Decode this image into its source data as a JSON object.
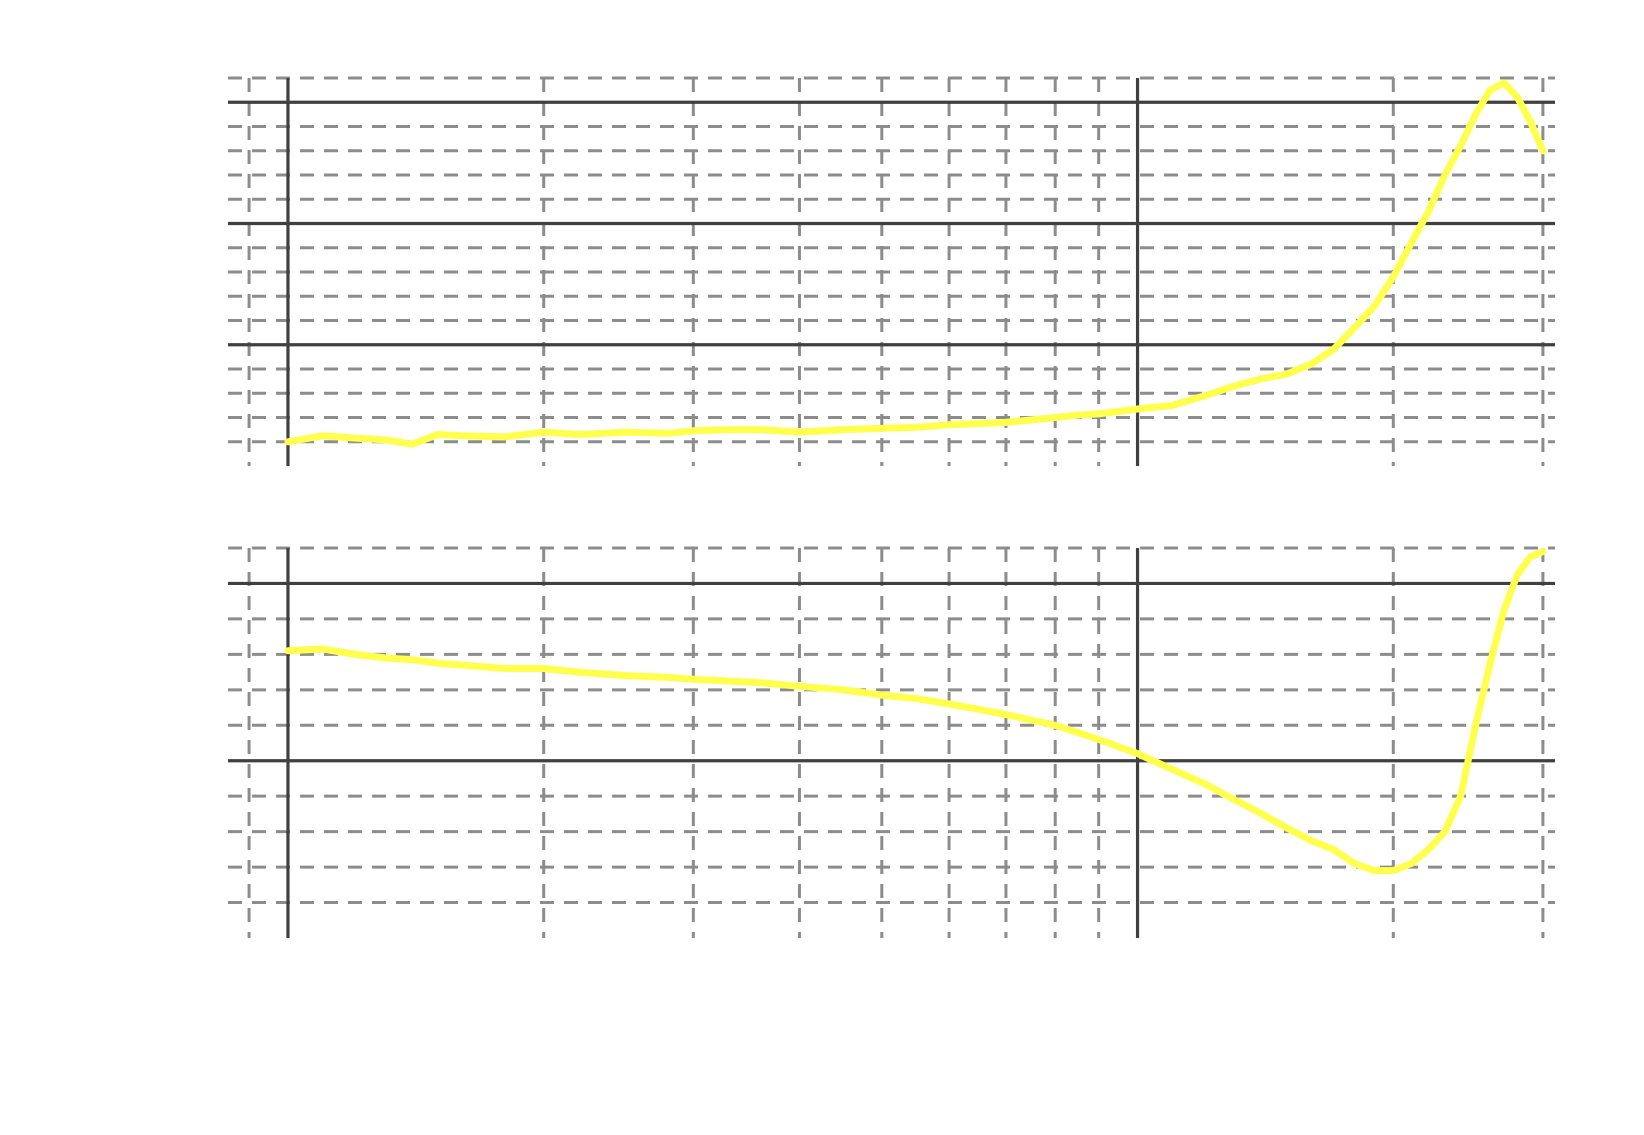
{
  "chart_data": [
    {
      "type": "line",
      "title": "",
      "xlabel": "",
      "ylabel": "",
      "x_scale": "log",
      "xlim": [
        0.85,
        31
      ],
      "x_major_ticks": [
        1,
        10
      ],
      "x_minor_ticks": [
        0.8,
        0.9,
        2,
        3,
        4,
        5,
        6,
        7,
        8,
        9,
        20,
        30
      ],
      "ylim": [
        0,
        1.6
      ],
      "y_major_ticks": [
        0.5,
        1.0,
        1.5
      ],
      "y_minor_ticks": [
        0.1,
        0.2,
        0.3,
        0.4,
        0.6,
        0.7,
        0.8,
        0.9,
        1.1,
        1.2,
        1.3,
        1.4,
        1.6
      ],
      "grid": true,
      "legend": "none",
      "series_color": "#ffff4d",
      "series": [
        {
          "x": [
            1.0,
            1.1,
            1.2,
            1.3,
            1.4,
            1.5,
            1.6,
            1.8,
            2.0,
            2.2,
            2.5,
            2.8,
            3.0,
            3.3,
            3.6,
            4.0,
            4.5,
            5.0,
            5.5,
            6.0,
            6.5,
            7.0,
            7.5,
            8.0,
            8.5,
            9.0,
            10.0,
            11.0,
            12.0,
            13.0,
            14.0,
            15.0,
            16.0,
            17.0,
            18.0,
            19.0,
            20.0,
            21.0,
            22.0,
            23.0,
            24.0,
            25.0,
            26.0,
            27.0,
            28.0,
            29.0,
            30.0
          ],
          "y": [
            0.1,
            0.125,
            0.115,
            0.108,
            0.09,
            0.13,
            0.125,
            0.12,
            0.14,
            0.13,
            0.14,
            0.135,
            0.145,
            0.15,
            0.15,
            0.14,
            0.15,
            0.155,
            0.16,
            0.17,
            0.175,
            0.18,
            0.19,
            0.2,
            0.21,
            0.215,
            0.235,
            0.25,
            0.29,
            0.33,
            0.36,
            0.38,
            0.42,
            0.48,
            0.57,
            0.66,
            0.78,
            0.92,
            1.05,
            1.2,
            1.32,
            1.45,
            1.55,
            1.58,
            1.52,
            1.42,
            1.3
          ],
          "name": ""
        }
      ]
    },
    {
      "type": "line",
      "title": "",
      "xlabel": "",
      "ylabel": "",
      "x_scale": "log",
      "xlim": [
        0.85,
        31
      ],
      "x_major_ticks": [
        1,
        10
      ],
      "x_minor_ticks": [
        0.8,
        0.9,
        2,
        3,
        4,
        5,
        6,
        7,
        8,
        9,
        20,
        30
      ],
      "ylim": [
        -1.0,
        1.2
      ],
      "y_major_ticks": [
        0,
        1.0
      ],
      "y_minor_ticks": [
        -0.8,
        -0.6,
        -0.4,
        -0.2,
        0.2,
        0.4,
        0.6,
        0.8,
        1.2
      ],
      "grid": true,
      "legend": "none",
      "series_color": "#ffff4d",
      "series": [
        {
          "x": [
            1.0,
            1.1,
            1.2,
            1.3,
            1.4,
            1.5,
            1.6,
            1.8,
            2.0,
            2.2,
            2.5,
            2.8,
            3.0,
            3.3,
            3.6,
            4.0,
            4.5,
            5.0,
            5.5,
            6.0,
            6.5,
            7.0,
            7.5,
            8.0,
            8.5,
            9.0,
            10.0,
            11.0,
            12.0,
            13.0,
            14.0,
            15.0,
            16.0,
            17.0,
            18.0,
            19.0,
            20.0,
            21.0,
            22.0,
            23.0,
            24.0,
            25.0,
            26.0,
            27.0,
            28.0,
            29.0,
            30.0
          ],
          "y": [
            0.62,
            0.63,
            0.6,
            0.58,
            0.57,
            0.55,
            0.54,
            0.52,
            0.52,
            0.5,
            0.48,
            0.47,
            0.46,
            0.45,
            0.44,
            0.42,
            0.4,
            0.37,
            0.35,
            0.32,
            0.29,
            0.26,
            0.23,
            0.2,
            0.16,
            0.12,
            0.04,
            -0.05,
            -0.13,
            -0.22,
            -0.3,
            -0.38,
            -0.45,
            -0.5,
            -0.58,
            -0.62,
            -0.62,
            -0.58,
            -0.5,
            -0.4,
            -0.2,
            0.2,
            0.55,
            0.85,
            1.05,
            1.15,
            1.18
          ],
          "name": ""
        }
      ]
    }
  ]
}
